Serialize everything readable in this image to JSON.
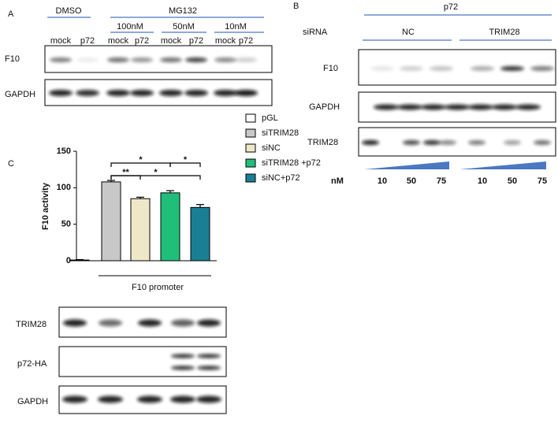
{
  "panel_a": {
    "label": "A",
    "treatments": [
      "DMSO",
      "MG132"
    ],
    "doses": [
      "100nM",
      "50nM",
      "10nM"
    ],
    "lanes": [
      "mock",
      "p72",
      "mock",
      "p72",
      "mock",
      "p72",
      "mock",
      "p72"
    ],
    "blots": [
      "F10",
      "GAPDH"
    ]
  },
  "panel_b": {
    "label": "B",
    "group": "p72",
    "sirna_label": "siRNA",
    "sirnas": [
      "NC",
      "TRIM28"
    ],
    "blots": [
      "F10",
      "GAPDH",
      "TRIM28"
    ],
    "dose_unit": "nM",
    "doses": [
      10,
      50,
      75,
      10,
      50,
      75
    ]
  },
  "chart_data": {
    "type": "bar",
    "panel_label": "C",
    "y_label": "F10 activity",
    "x_label": "F10 promoter",
    "series": [
      {
        "name": "pGL",
        "color": "#ffffff",
        "values": [
          1
        ],
        "errors": [
          0.5
        ]
      },
      {
        "name": "siTRIM28",
        "color": "#c8c8c8",
        "values": [
          108
        ],
        "errors": [
          2
        ]
      },
      {
        "name": "siNC",
        "color": "#efe8c8",
        "values": [
          85
        ],
        "errors": [
          2
        ]
      },
      {
        "name": "siTRIM28 +p72",
        "color": "#1fbf7a",
        "values": [
          93
        ],
        "errors": [
          3
        ]
      },
      {
        "name": "siNC+p72",
        "color": "#1a7f95",
        "values": [
          73
        ],
        "errors": [
          4
        ]
      }
    ],
    "ylim": [
      0,
      150
    ],
    "yticks": [
      0,
      50,
      100,
      150
    ],
    "annotations": [
      "*",
      "*",
      "**",
      "*"
    ]
  },
  "panel_c_blots": [
    "TRIM28",
    "p72-HA",
    "GAPDH"
  ]
}
